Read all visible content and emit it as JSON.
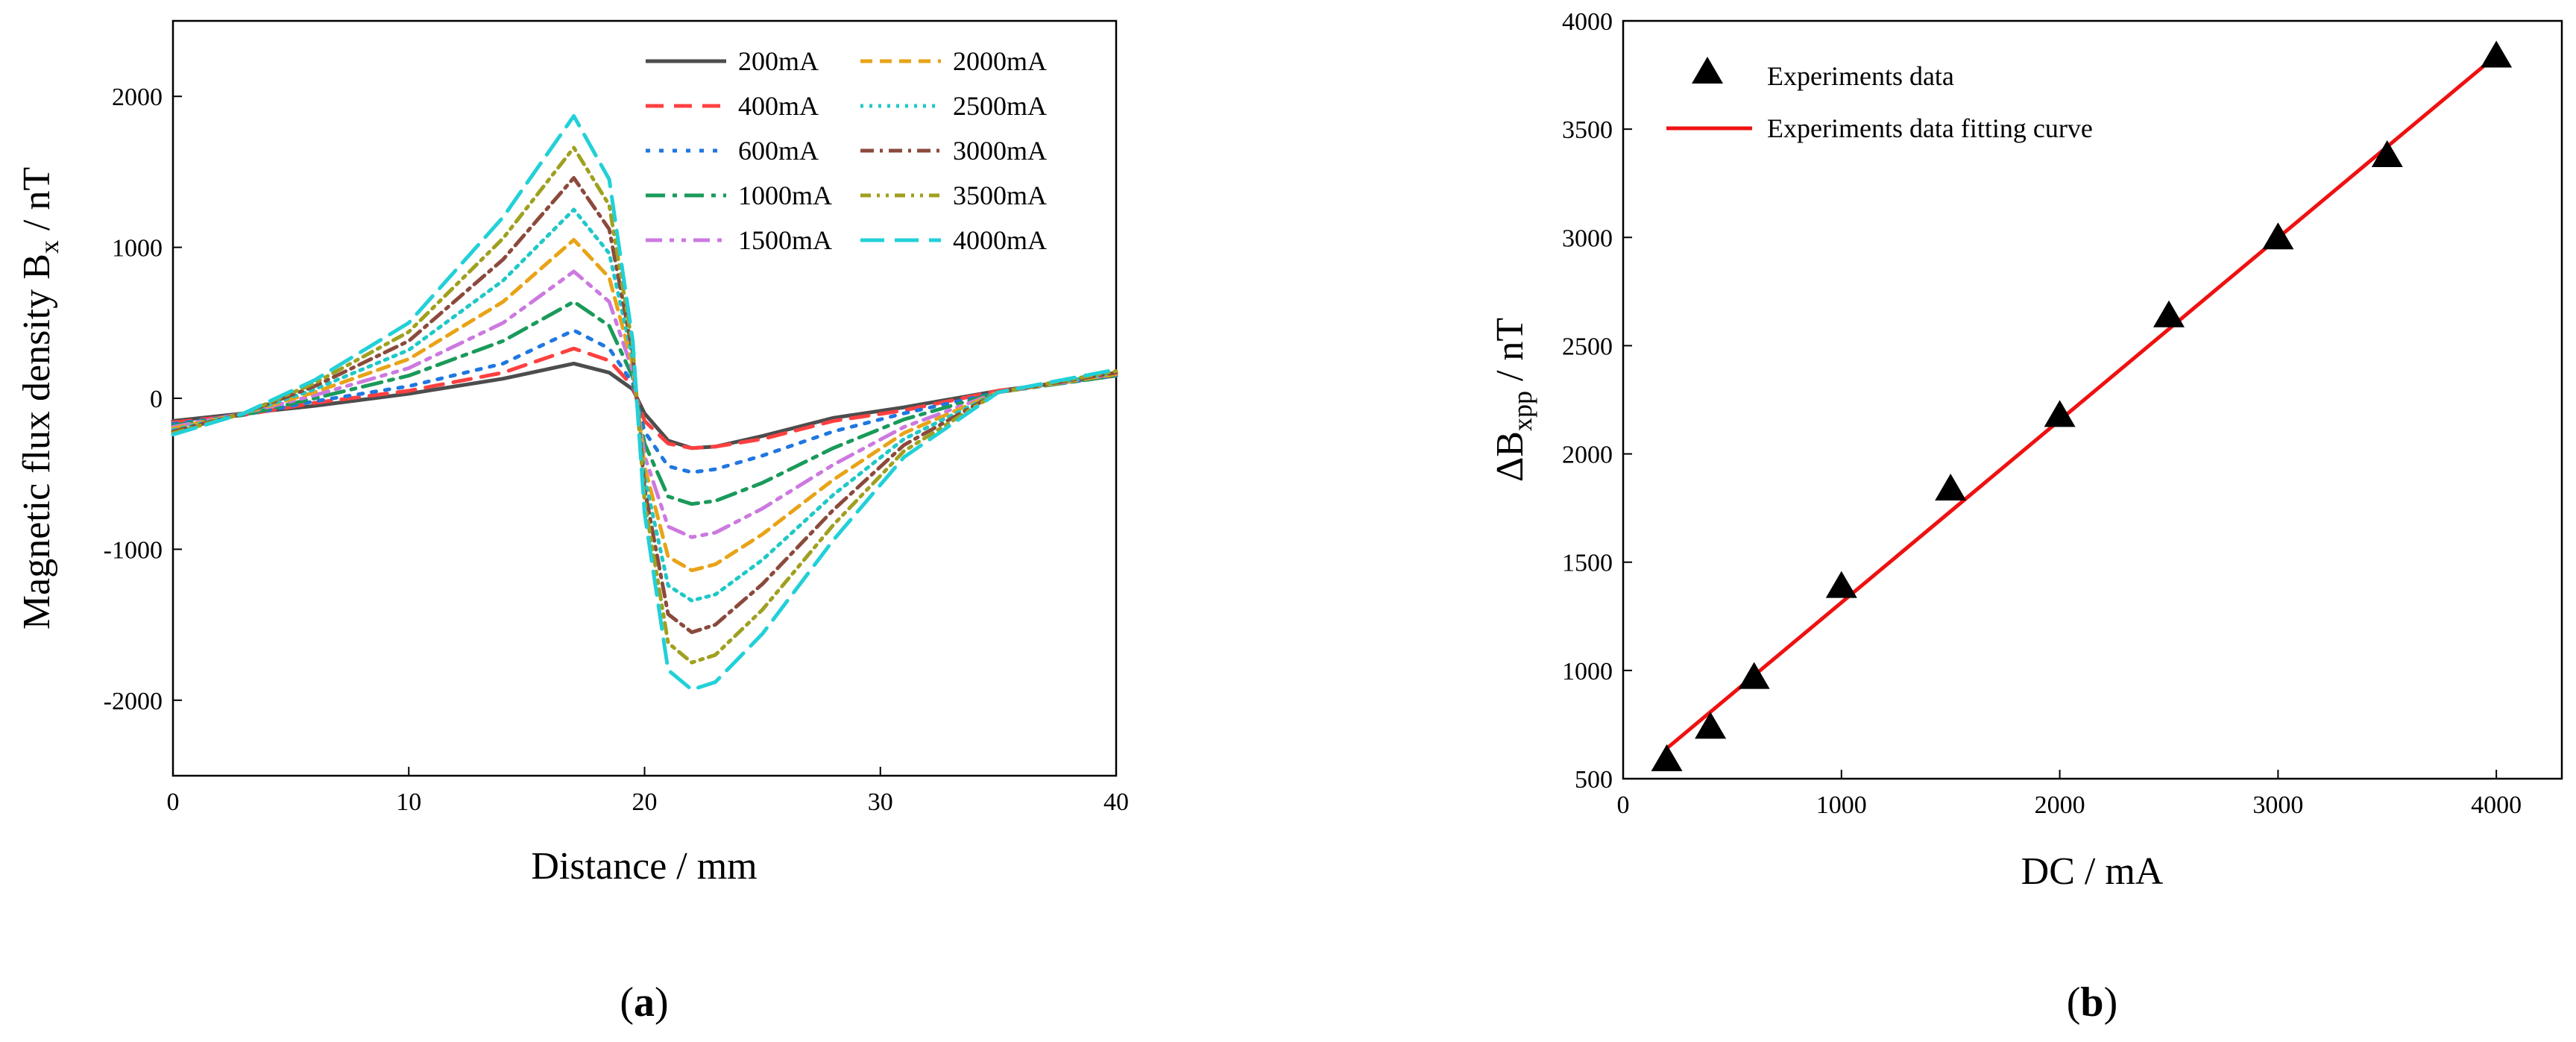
{
  "chart_data": [
    {
      "panel": "(a)",
      "panel_letter": "a",
      "type": "line",
      "title": "",
      "xlabel": "Distance / mm",
      "ylabel": "Magnetic flux density B_x / nT",
      "ylabel_main": "Magnetic flux density B",
      "ylabel_sub": "x",
      "ylabel_unit": " / nT",
      "xlim": [
        0,
        40
      ],
      "ylim": [
        -2500,
        2500
      ],
      "xticks": [
        0,
        10,
        20,
        30,
        40
      ],
      "yticks": [
        -2000,
        -1000,
        0,
        1000,
        2000
      ],
      "legend_position": "top-right",
      "series": [
        {
          "name": "200mA",
          "color": "#4d4d4d",
          "dash": "solid",
          "x": [
            0,
            3,
            6,
            10,
            14,
            17,
            18.5,
            19.5,
            20,
            21,
            22,
            23,
            25,
            28,
            31,
            35,
            40
          ],
          "y": [
            -150,
            -100,
            -50,
            30,
            130,
            230,
            170,
            60,
            -100,
            -280,
            -330,
            -320,
            -250,
            -130,
            -60,
            50,
            150
          ]
        },
        {
          "name": "400mA",
          "color": "#ff4040",
          "dash": "24,14",
          "x": [
            0,
            3,
            6,
            10,
            14,
            17,
            18.5,
            19.5,
            20,
            21,
            22,
            23,
            25,
            28,
            31,
            35,
            40
          ],
          "y": [
            -160,
            -110,
            -30,
            50,
            170,
            330,
            250,
            80,
            -150,
            -300,
            -330,
            -320,
            -270,
            -150,
            -80,
            50,
            150
          ]
        },
        {
          "name": "600mA",
          "color": "#1f77e0",
          "dash": "6,12",
          "x": [
            0,
            3,
            6,
            10,
            14,
            17,
            18.5,
            19.5,
            20,
            21,
            22,
            23,
            25,
            28,
            31,
            35,
            40
          ],
          "y": [
            -170,
            -110,
            -20,
            80,
            230,
            450,
            330,
            100,
            -220,
            -450,
            -490,
            -470,
            -380,
            -220,
            -100,
            40,
            150
          ]
        },
        {
          "name": "1000mA",
          "color": "#1a9a5a",
          "dash": "26,10,6,10",
          "x": [
            0,
            3,
            6,
            10,
            14,
            17,
            18.5,
            19.5,
            20,
            21,
            22,
            23,
            25,
            28,
            31,
            35,
            40
          ],
          "y": [
            -180,
            -110,
            0,
            150,
            380,
            640,
            480,
            140,
            -300,
            -650,
            -700,
            -680,
            -560,
            -330,
            -140,
            40,
            150
          ]
        },
        {
          "name": "1500mA",
          "color": "#cc79e0",
          "dash": "22,10,6,10,6,10",
          "x": [
            0,
            3,
            6,
            10,
            14,
            17,
            18.5,
            19.5,
            20,
            21,
            22,
            23,
            25,
            28,
            31,
            35,
            40
          ],
          "y": [
            -190,
            -100,
            20,
            200,
            500,
            840,
            640,
            180,
            -380,
            -850,
            -920,
            -890,
            -730,
            -440,
            -190,
            40,
            160
          ]
        },
        {
          "name": "2000mA",
          "color": "#e8a317",
          "dash": "16,10",
          "x": [
            0,
            3,
            6,
            10,
            14,
            17,
            18.5,
            19.5,
            20,
            21,
            22,
            23,
            25,
            28,
            31,
            35,
            40
          ],
          "y": [
            -200,
            -100,
            40,
            260,
            640,
            1050,
            800,
            220,
            -450,
            -1050,
            -1140,
            -1100,
            -900,
            -540,
            -230,
            40,
            160
          ]
        },
        {
          "name": "2500mA",
          "color": "#20c8c8",
          "dash": "4,8",
          "x": [
            0,
            3,
            6,
            10,
            14,
            17,
            18.5,
            19.5,
            20,
            21,
            22,
            23,
            25,
            28,
            31,
            35,
            40
          ],
          "y": [
            -210,
            -100,
            60,
            320,
            780,
            1250,
            960,
            260,
            -520,
            -1240,
            -1340,
            -1300,
            -1070,
            -640,
            -270,
            40,
            170
          ]
        },
        {
          "name": "3000mA",
          "color": "#8b4a3c",
          "dash": "18,8,4,8",
          "x": [
            0,
            3,
            6,
            10,
            14,
            17,
            18.5,
            19.5,
            20,
            21,
            22,
            23,
            25,
            28,
            31,
            35,
            40
          ],
          "y": [
            -220,
            -100,
            80,
            380,
            920,
            1460,
            1120,
            300,
            -600,
            -1430,
            -1550,
            -1500,
            -1230,
            -740,
            -310,
            40,
            170
          ]
        },
        {
          "name": "3500mA",
          "color": "#a0a020",
          "dash": "14,8,4,8,4,8",
          "x": [
            0,
            3,
            6,
            10,
            14,
            17,
            18.5,
            19.5,
            20,
            21,
            22,
            23,
            25,
            28,
            31,
            35,
            40
          ],
          "y": [
            -230,
            -100,
            100,
            440,
            1060,
            1660,
            1280,
            340,
            -680,
            -1620,
            -1750,
            -1700,
            -1400,
            -840,
            -350,
            40,
            180
          ]
        },
        {
          "name": "4000mA",
          "color": "#22d0d8",
          "dash": "32,14",
          "x": [
            0,
            3,
            6,
            10,
            14,
            17,
            18.5,
            19.5,
            20,
            21,
            22,
            23,
            25,
            28,
            31,
            35,
            40
          ],
          "y": [
            -240,
            -100,
            120,
            500,
            1200,
            1870,
            1450,
            380,
            -760,
            -1800,
            -1930,
            -1880,
            -1560,
            -940,
            -390,
            40,
            190
          ]
        }
      ]
    },
    {
      "panel": "(b)",
      "panel_letter": "b",
      "type": "scatter",
      "title": "",
      "xlabel": "DC / mA",
      "ylabel": "ΔB_xpp / nT",
      "ylabel_main": "ΔB",
      "ylabel_sub": "xpp",
      "ylabel_unit": " / nT",
      "xlim": [
        0,
        4300
      ],
      "ylim": [
        500,
        4000
      ],
      "xticks": [
        0,
        1000,
        2000,
        3000,
        4000
      ],
      "yticks": [
        500,
        1000,
        1500,
        2000,
        2500,
        3000,
        3500,
        4000
      ],
      "legend_position": "top-left",
      "series": [
        {
          "name": "Experiments data",
          "marker": "triangle",
          "color": "#000000",
          "x": [
            200,
            400,
            600,
            1000,
            1500,
            2000,
            2500,
            3000,
            3500,
            4000
          ],
          "y": [
            590,
            740,
            970,
            1390,
            1840,
            2180,
            2640,
            3000,
            3380,
            3840
          ]
        },
        {
          "name": "Experiments data fitting curve",
          "line": true,
          "color": "#ee1111",
          "x": [
            200,
            4000
          ],
          "y": [
            640,
            3840
          ]
        }
      ]
    }
  ]
}
